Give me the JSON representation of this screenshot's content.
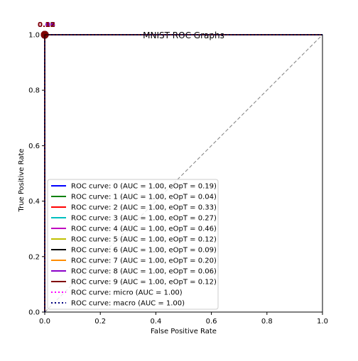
{
  "chart_data": {
    "type": "line",
    "title": "MNIST ROC Graphs",
    "xlabel": "False Positive Rate",
    "ylabel": "True Positive Rate",
    "xlim": [
      0,
      1
    ],
    "ylim": [
      0,
      1
    ],
    "xticks": [
      "0.0",
      "0.2",
      "0.4",
      "0.6",
      "0.8",
      "1.0"
    ],
    "yticks": [
      "0.0",
      "0.2",
      "0.4",
      "0.6",
      "0.8",
      "1.0"
    ],
    "grid": false,
    "legend_placement": "lower-left",
    "diagonal_reference": {
      "x": [
        0,
        1
      ],
      "y": [
        0,
        1
      ],
      "color": "#808080",
      "style": "dashed"
    },
    "series": [
      {
        "name": "ROC curve: 0 (AUC = 1.00, eOpT = 0.19)",
        "color": "#0000ff",
        "style": "solid",
        "x": [
          0,
          0,
          1
        ],
        "y": [
          0,
          1,
          1
        ]
      },
      {
        "name": "ROC curve: 1 (AUC = 1.00, eOpT = 0.04)",
        "color": "#008000",
        "style": "solid",
        "x": [
          0,
          0,
          1
        ],
        "y": [
          0,
          1,
          1
        ]
      },
      {
        "name": "ROC curve: 2 (AUC = 1.00, eOpT = 0.33)",
        "color": "#ff0000",
        "style": "solid",
        "x": [
          0,
          0,
          1
        ],
        "y": [
          0,
          1,
          1
        ]
      },
      {
        "name": "ROC curve: 3 (AUC = 1.00, eOpT = 0.27)",
        "color": "#00bfbf",
        "style": "solid",
        "x": [
          0,
          0,
          1
        ],
        "y": [
          0,
          1,
          1
        ]
      },
      {
        "name": "ROC curve: 4 (AUC = 1.00, eOpT = 0.46)",
        "color": "#bf00bf",
        "style": "solid",
        "x": [
          0,
          0,
          1
        ],
        "y": [
          0,
          1,
          1
        ]
      },
      {
        "name": "ROC curve: 5 (AUC = 1.00, eOpT = 0.12)",
        "color": "#bfbf00",
        "style": "solid",
        "x": [
          0,
          0,
          1
        ],
        "y": [
          0,
          1,
          1
        ]
      },
      {
        "name": "ROC curve: 6 (AUC = 1.00, eOpT = 0.09)",
        "color": "#000000",
        "style": "solid",
        "x": [
          0,
          0,
          1
        ],
        "y": [
          0,
          1,
          1
        ]
      },
      {
        "name": "ROC curve: 7 (AUC = 1.00, eOpT = 0.20)",
        "color": "#ff8c00",
        "style": "solid",
        "x": [
          0,
          0,
          1
        ],
        "y": [
          0,
          1,
          1
        ]
      },
      {
        "name": "ROC curve: 8 (AUC = 1.00, eOpT = 0.06)",
        "color": "#8b00c8",
        "style": "solid",
        "x": [
          0,
          0,
          1
        ],
        "y": [
          0,
          1,
          1
        ]
      },
      {
        "name": "ROC curve: 9 (AUC = 1.00, eOpT = 0.12)",
        "color": "#800000",
        "style": "solid",
        "x": [
          0,
          0,
          1
        ],
        "y": [
          0,
          1,
          1
        ]
      },
      {
        "name": "ROC curve: micro (AUC = 1.00)",
        "color": "#ff00ff",
        "style": "dotted",
        "x": [
          0,
          0,
          1
        ],
        "y": [
          0,
          1,
          1
        ]
      },
      {
        "name": "ROC curve: macro (AUC = 1.00)",
        "color": "#000080",
        "style": "dotted",
        "x": [
          0,
          0,
          1
        ],
        "y": [
          0,
          1,
          1
        ]
      }
    ],
    "optimal_points": [
      {
        "label": "0.19",
        "x": 0.0,
        "y": 1.0,
        "color": "#0000ff"
      },
      {
        "label": "0.04",
        "x": 0.0,
        "y": 1.0,
        "color": "#008000"
      },
      {
        "label": "0.33",
        "x": 0.0,
        "y": 1.0,
        "color": "#ff0000"
      },
      {
        "label": "0.27",
        "x": 0.0,
        "y": 1.0,
        "color": "#00bfbf"
      },
      {
        "label": "0.46",
        "x": 0.0,
        "y": 1.0,
        "color": "#bf00bf"
      },
      {
        "label": "0.12",
        "x": 0.0,
        "y": 1.0,
        "color": "#bfbf00"
      },
      {
        "label": "0.09",
        "x": 0.0,
        "y": 1.0,
        "color": "#000000"
      },
      {
        "label": "0.20",
        "x": 0.0,
        "y": 1.0,
        "color": "#ff8c00"
      },
      {
        "label": "0.06",
        "x": 0.0,
        "y": 1.0,
        "color": "#8b00c8"
      },
      {
        "label": "0.12",
        "x": 0.0,
        "y": 1.0,
        "color": "#800000"
      }
    ]
  }
}
